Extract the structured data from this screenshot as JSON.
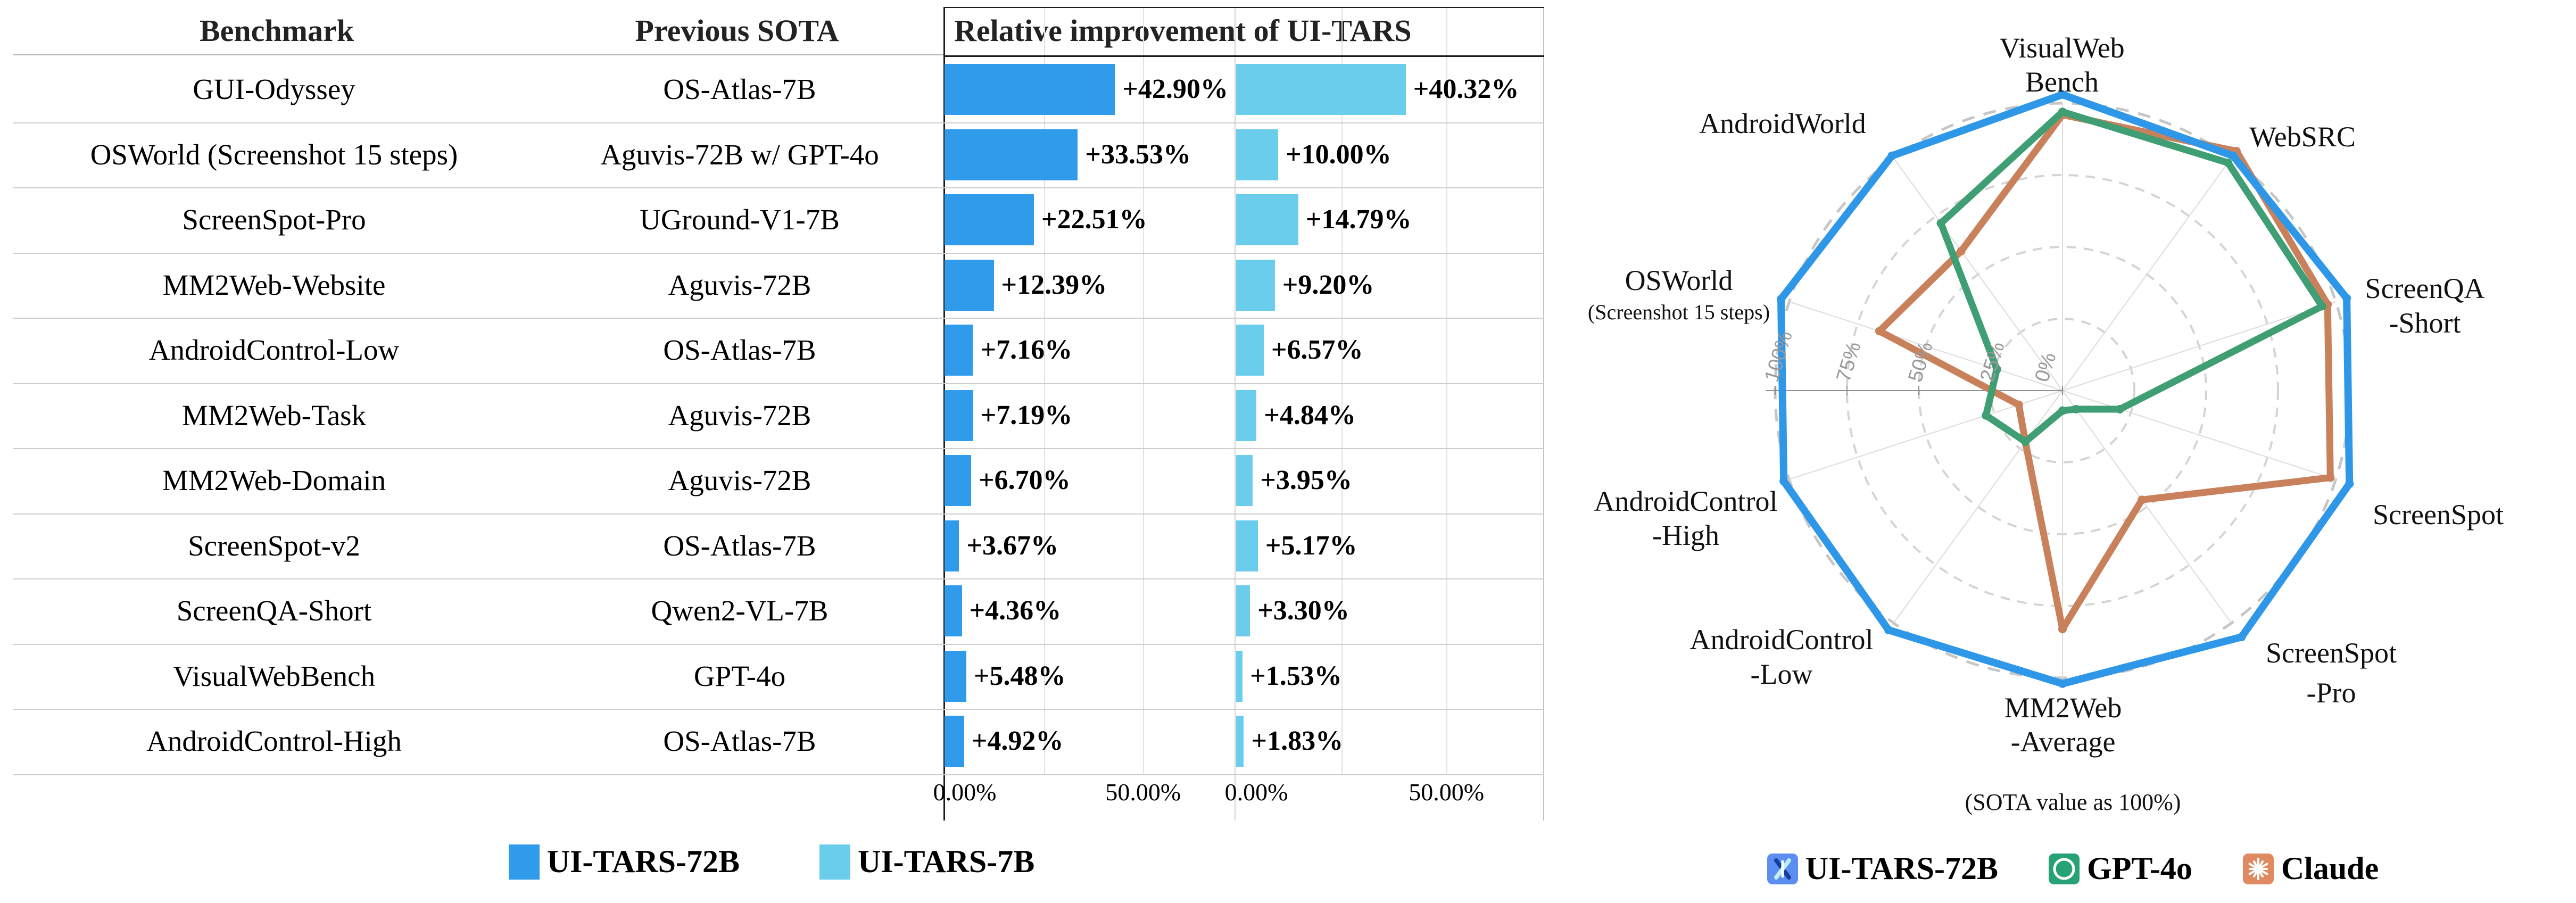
{
  "chart_data": [
    {
      "type": "bar",
      "title": "Relative improvement of UI-TARS",
      "col_headers": {
        "benchmark": "Benchmark",
        "previous_sota": "Previous SOTA"
      },
      "categories": [
        "GUI-Odyssey",
        "OSWorld (Screenshot 15 steps)",
        "ScreenSpot-Pro",
        "MM2Web-Website",
        "AndroidControl-Low",
        "MM2Web-Task",
        "MM2Web-Domain",
        "ScreenSpot-v2",
        "ScreenQA-Short",
        "VisualWebBench",
        "AndroidControl-High"
      ],
      "previous_sota": [
        "OS-Atlas-7B",
        "Aguvis-72B w/ GPT-4o",
        "UGround-V1-7B",
        "Aguvis-72B",
        "OS-Atlas-7B",
        "Aguvis-72B",
        "Aguvis-72B",
        "OS-Atlas-7B",
        "Qwen2-VL-7B",
        "GPT-4o",
        "OS-Atlas-7B"
      ],
      "series": [
        {
          "name": "UI-TARS-72B",
          "color": "#2F9BEA",
          "values": [
            42.9,
            33.53,
            22.51,
            12.39,
            7.16,
            7.19,
            6.7,
            3.67,
            4.36,
            5.48,
            4.92
          ],
          "labels": [
            "+42.90%",
            "+33.53%",
            "+22.51%",
            "+12.39%",
            "+7.16%",
            "+7.19%",
            "+6.70%",
            "+3.67%",
            "+4.36%",
            "+5.48%",
            "+4.92%"
          ]
        },
        {
          "name": "UI-TARS-7B",
          "color": "#6ACDEC",
          "values": [
            40.32,
            10.0,
            14.79,
            9.2,
            6.57,
            4.84,
            3.95,
            5.17,
            3.3,
            1.53,
            1.83
          ],
          "labels": [
            "+40.32%",
            "+10.00%",
            "+14.79%",
            "+9.20%",
            "+6.57%",
            "+4.84%",
            "+3.95%",
            "+5.17%",
            "+3.30%",
            "+1.53%",
            "+1.83%"
          ]
        }
      ],
      "xlim": [
        0,
        73
      ],
      "xticks": [
        {
          "value": 0,
          "label": "0.00%"
        },
        {
          "value": 50,
          "label": "50.00%"
        }
      ],
      "gridlines": [
        25,
        50
      ],
      "grid_on": true,
      "legend_position": "bottom"
    },
    {
      "type": "radar",
      "note": "(SOTA value as 100%)",
      "rticks": [
        "0%",
        "25%",
        "50%",
        "75%",
        "100%"
      ],
      "rmax": 100,
      "categories": [
        {
          "name": "VisualWebBench",
          "x": 925,
          "lines": [
            {
              "t": "VisualWeb",
              "y": 108
            },
            {
              "t": "Bench",
              "y": 172
            }
          ]
        },
        {
          "name": "WebSRC",
          "x": 1377,
          "lines": [
            {
              "t": "WebSRC",
              "y": 275
            }
          ]
        },
        {
          "name": "ScreenQA-Short",
          "x": 1607,
          "lines": [
            {
              "t": "ScreenQA",
              "y": 560
            },
            {
              "t": "-Short",
              "y": 625
            }
          ]
        },
        {
          "name": "ScreenSpot",
          "x": 1632,
          "lines": [
            {
              "t": "ScreenSpot",
              "y": 985
            }
          ]
        },
        {
          "name": "ScreenSpot-Pro",
          "x": 1431,
          "lines": [
            {
              "t": "ScreenSpot",
              "y": 1245
            },
            {
              "t": "-Pro",
              "y": 1320
            }
          ]
        },
        {
          "name": "MM2Web-Average",
          "x": 927,
          "lines": [
            {
              "t": "MM2Web",
              "y": 1348
            },
            {
              "t": "-Average",
              "y": 1412
            }
          ]
        },
        {
          "name": "AndroidControl-Low",
          "x": 398,
          "lines": [
            {
              "t": "AndroidControl",
              "y": 1220
            },
            {
              "t": "-Low",
              "y": 1285
            }
          ]
        },
        {
          "name": "AndroidControl-High",
          "x": 218,
          "lines": [
            {
              "t": "AndroidControl",
              "y": 960
            },
            {
              "t": "-High",
              "y": 1024
            }
          ]
        },
        {
          "name": "OSWorld",
          "x": 205,
          "lines": [
            {
              "t": "OSWorld",
              "y": 545
            },
            {
              "t": "(Screenshot 15 steps)",
              "y": 600,
              "small": true
            }
          ]
        },
        {
          "name": "AndroidWorld",
          "x": 400,
          "lines": [
            {
              "t": "AndroidWorld",
              "y": 250
            }
          ]
        }
      ],
      "series": [
        {
          "name": "UI-TARS-72B",
          "color": "#2F97E8",
          "legend_color": "#5C8DF0",
          "icon": "ui-tars-logo",
          "values": [
            103,
            101,
            104,
            105,
            106,
            102,
            103,
            102,
            103,
            101
          ]
        },
        {
          "name": "GPT-4o",
          "color": "#3F9E73",
          "legend_color": "#27A176",
          "icon": "openai-logo",
          "values": [
            97,
            98,
            95,
            21,
            8,
            7,
            22,
            28,
            24,
            72
          ]
        },
        {
          "name": "Claude",
          "color": "#C9815C",
          "legend_color": "#E08A62",
          "icon": "claude-logo",
          "values": [
            96,
            103,
            97,
            98,
            47,
            83,
            22,
            16,
            67,
            60
          ]
        }
      ]
    }
  ]
}
